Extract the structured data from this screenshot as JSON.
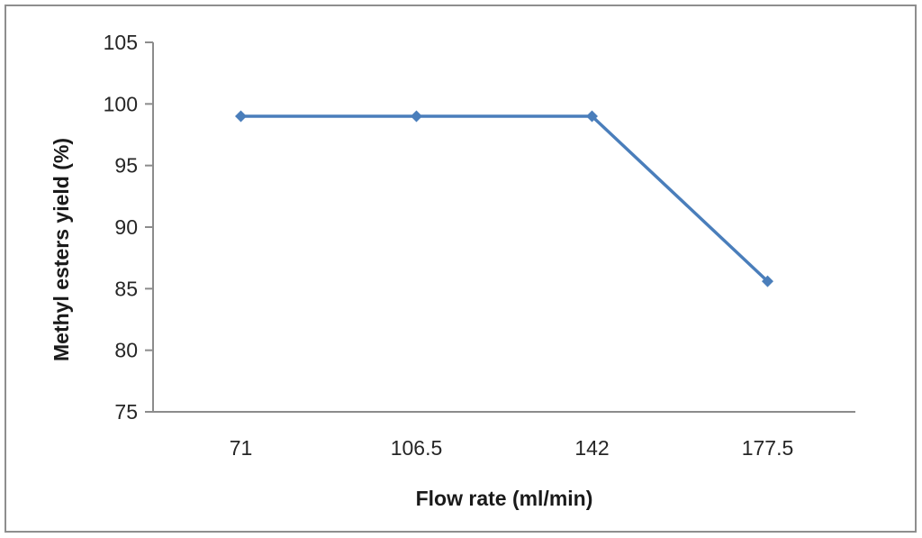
{
  "figure": {
    "background_color": "#ffffff",
    "border_color": "#8e8e8e"
  },
  "chart_data": {
    "type": "line",
    "categories": [
      "71",
      "106.5",
      "142",
      "177.5"
    ],
    "values": [
      99,
      99,
      99,
      85.6
    ],
    "title": "",
    "xlabel": "Flow rate (ml/min)",
    "ylabel": "Methyl esters yield (%)",
    "ylim": [
      75,
      105
    ],
    "y_ticks": [
      75,
      80,
      85,
      90,
      95,
      100,
      105
    ],
    "grid": false,
    "legend": "none",
    "line_color": "#4A7EBB",
    "marker": "diamond",
    "marker_color": "#4A7EBB",
    "axis_color": "#8c8c8c",
    "tick_text_color": "#262626",
    "title_text_color": "#1a1a1a"
  }
}
